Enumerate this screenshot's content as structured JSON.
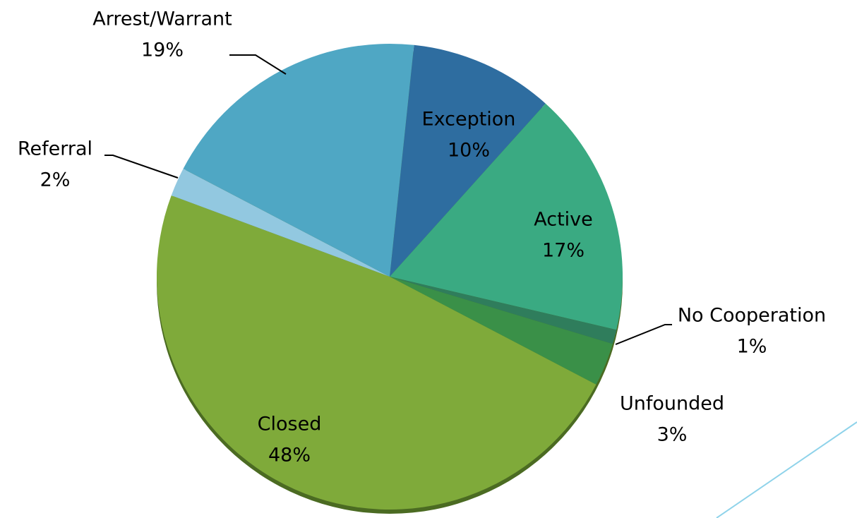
{
  "chart_data": {
    "type": "pie",
    "categories": [
      "Exception",
      "Active",
      "No Cooperation",
      "Unfounded",
      "Closed",
      "Referral",
      "Arrest/Warrant"
    ],
    "values": [
      10,
      17,
      1,
      3,
      48,
      2,
      19
    ],
    "value_labels": [
      "10%",
      "17%",
      "1%",
      "3%",
      "48%",
      "2%",
      "19%"
    ],
    "colors": [
      "#2e6da0",
      "#3aaa82",
      "#2f7d5c",
      "#3a9048",
      "#7faa3a",
      "#92c8e0",
      "#4fa7c4"
    ]
  }
}
